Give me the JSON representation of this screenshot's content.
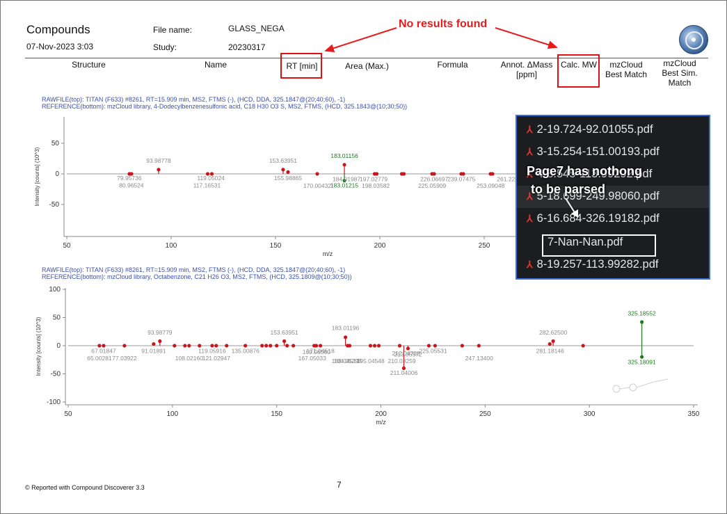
{
  "header": {
    "title": "Compounds",
    "date": "07-Nov-2023 3:03",
    "file_name_label": "File name:",
    "file_name_value": "GLASS_NEGA",
    "study_label": "Study:",
    "study_value": "20230317"
  },
  "annotation": {
    "text": "No results found",
    "color": "#e81b1b"
  },
  "columns": {
    "structure": "Structure",
    "name": "Name",
    "rt": "RT [min]",
    "area": "Area (Max.)",
    "formula": "Formula",
    "annot_line1": "Annot. ΔMass",
    "annot_line2": "[ppm]",
    "calc_mw": "Calc. MW",
    "mzcloud_line1": "mzCloud",
    "mzcloud_line2": "Best Match",
    "mzcloud_sim_line1": "mzCloud",
    "mzcloud_sim_line2": "Best Sim.",
    "mzcloud_sim_line3": "Match"
  },
  "spectrum1_header": {
    "line1": "RAWFILE(top): TITAN (F633) #8261, RT=15.909 min, MS2, FTMS (-), (HCD, DDA, 325.1847@(20;40;60), -1)",
    "line2": "REFERENCE(bottom): mzCloud library, 4-Dodecylbenzenesulfonic acid, C18 H30 O3 S, MS2, FTMS, (HCD, 325.1843@(10;30;50))"
  },
  "spectrum2_header": {
    "line1": "RAWFILE(top): TITAN (F633) #8261, RT=15.909 min, MS2, FTMS (-), (HCD, DDA, 325.1847@(20;40;60), -1)",
    "line2": "REFERENCE(bottom): mzCloud library, Octabenzone, C21 H26 O3, MS2, FTMS, (HCD, 325.1809@(10;30;50))"
  },
  "overlay": {
    "files": [
      "2-19.724-92.01055.pdf",
      "3-15.254-151.00193.pdf",
      "4-8.545-113.99292.pdf",
      "5-18.699-249.98060.pdf",
      "6-16.684-326.19182.pdf",
      "7-Nan-Nan.pdf",
      "8-19.257-113.99282.pdf"
    ],
    "note_line1": "Page7 has nothong",
    "note_line2": "to be parsed",
    "pdf_icon": "pdf-file-icon"
  },
  "footer": {
    "credit": "© Reported with Compound Discoverer 3.3",
    "page_number": "7"
  },
  "colors": {
    "red_peak": "#c8161d",
    "green_peak": "#1f7a1f",
    "header_blue": "#3a4fb0",
    "label_gray": "#8a8a8a"
  },
  "chart_data": [
    {
      "type": "scatter",
      "xlabel": "m/z",
      "ylabel": "Intensity [counts] (10^3)",
      "xlim": [
        50,
        300
      ],
      "ylim": [
        -75,
        75
      ],
      "xticks": [
        "50",
        "100",
        "150",
        "200",
        "250"
      ],
      "yticks": [
        "50",
        "0",
        "-50"
      ],
      "series": [
        {
          "mz": [
            80.0,
            81.0,
            93.98778,
            117.5,
            119.5,
            153.63951,
            156.0,
            170.0,
            183.01156,
            197.5,
            198.5,
            210.5,
            211.5,
            225.0,
            226.0,
            239.0,
            240.0,
            253.0,
            254.0
          ],
          "intensity": [
            0,
            0,
            7,
            0,
            0,
            7,
            3,
            0,
            15,
            0,
            0,
            0,
            0,
            0,
            0,
            0,
            0,
            0,
            0
          ]
        },
        {
          "mz": [
            183.01215
          ],
          "intensity": [
            -11
          ]
        }
      ],
      "labels": [
        {
          "text": "93.98778",
          "mz": 93.98778,
          "y": 18
        },
        {
          "text": "79.95736",
          "mz": 79.95736,
          "y": -10
        },
        {
          "text": "80.96524",
          "mz": 80.96524,
          "y": -22
        },
        {
          "text": "119.05024",
          "mz": 119.05024,
          "y": -10
        },
        {
          "text": "117.16531",
          "mz": 117.16531,
          "y": -22
        },
        {
          "text": "153.63951",
          "mz": 153.63951,
          "y": 18
        },
        {
          "text": "155.98865",
          "mz": 155.98865,
          "y": -10
        },
        {
          "text": "184.01987",
          "mz": 184.01987,
          "y": -12
        },
        {
          "text": "170.00432",
          "mz": 170.00432,
          "y": -23
        },
        {
          "text": "183.01156",
          "mz": 183.01156,
          "y": 26
        },
        {
          "text": "183.01215",
          "mz": 183.01215,
          "y": -22
        },
        {
          "text": "197.02779",
          "mz": 197.02779,
          "y": -12
        },
        {
          "text": "198.03582",
          "mz": 198.03582,
          "y": -23
        },
        {
          "text": "226.06697",
          "mz": 226.06697,
          "y": -12
        },
        {
          "text": "225.05909",
          "mz": 225.05909,
          "y": -23
        },
        {
          "text": "239.07475",
          "mz": 239.07475,
          "y": -12
        },
        {
          "text": "253.09048",
          "mz": 253.09048,
          "y": -23
        },
        {
          "text": "261.222",
          "mz": 261.222,
          "y": -12
        }
      ]
    },
    {
      "type": "scatter",
      "xlabel": "m/z",
      "ylabel": "Intensity [counts] (10^3)",
      "xlim": [
        50,
        350
      ],
      "ylim": [
        -100,
        100
      ],
      "xticks": [
        "50",
        "100",
        "150",
        "200",
        "250",
        "300",
        "350"
      ],
      "yticks": [
        "100",
        "50",
        "0",
        "-50",
        "-100"
      ],
      "series": [
        {
          "mz": [
            65.0,
            67.0,
            77.0,
            91.0,
            93.98779,
            101.0,
            106.0,
            108.0,
            113.0,
            119.05916,
            121.0,
            126.0,
            135.0,
            143.0,
            145.0,
            147.0,
            150.0,
            153.63951,
            155.0,
            158.0,
            168.0,
            169.0,
            171.0,
            183.01196,
            184.0,
            185.0,
            195.0,
            197.0,
            199.0,
            209.0,
            211.0,
            213.0,
            223.0,
            226.0,
            239.0,
            247.0,
            281.0,
            282.625,
            297.0
          ],
          "intensity": [
            0,
            0,
            0,
            3,
            8,
            0,
            0,
            0,
            0,
            0,
            0,
            0,
            0,
            0,
            0,
            0,
            0,
            8,
            0,
            0,
            0,
            0,
            0,
            15,
            0,
            0,
            0,
            0,
            0,
            0,
            -40,
            -5,
            0,
            0,
            0,
            0,
            3,
            8,
            0
          ]
        },
        {
          "mz": [
            325.18552,
            325.18091
          ],
          "intensity": [
            42,
            -20
          ]
        }
      ],
      "labels": [
        {
          "text": "93.98779",
          "mz": 93.98779,
          "y": 20
        },
        {
          "text": "91.01891",
          "mz": 91.01891,
          "y": -13
        },
        {
          "text": "67.01847",
          "mz": 67.01847,
          "y": -13
        },
        {
          "text": "65.00281",
          "mz": 65.00281,
          "y": -26
        },
        {
          "text": "77.03922",
          "mz": 77.03922,
          "y": -26
        },
        {
          "text": "119.05916",
          "mz": 119.05916,
          "y": -13
        },
        {
          "text": "108.02160",
          "mz": 108.0216,
          "y": -26
        },
        {
          "text": "121.02947",
          "mz": 121.02947,
          "y": -26
        },
        {
          "text": "153.63951",
          "mz": 153.63951,
          "y": 20
        },
        {
          "text": "135.00876",
          "mz": 135.00876,
          "y": -13
        },
        {
          "text": "171.04518",
          "mz": 171.04518,
          "y": -13
        },
        {
          "text": "167.05033",
          "mz": 167.05033,
          "y": -26
        },
        {
          "text": "169.06560",
          "mz": 169.0656,
          "y": -15
        },
        {
          "text": "183.04517",
          "mz": 183.04517,
          "y": -31
        },
        {
          "text": "183.01196",
          "mz": 183.01196,
          "y": 28
        },
        {
          "text": "184.05298",
          "mz": 184.05298,
          "y": -31
        },
        {
          "text": "212.04788",
          "mz": 212.04788,
          "y": -17
        },
        {
          "text": "195.04548",
          "mz": 195.04548,
          "y": -31
        },
        {
          "text": "213.05572",
          "mz": 213.05572,
          "y": -19
        },
        {
          "text": "210.03259",
          "mz": 210.03259,
          "y": -31
        },
        {
          "text": "211.04006",
          "mz": 211.04006,
          "y": -52
        },
        {
          "text": "225.05531",
          "mz": 225.05531,
          "y": -13
        },
        {
          "text": "247.13400",
          "mz": 247.134,
          "y": -26
        },
        {
          "text": "282.62500",
          "mz": 282.625,
          "y": 20
        },
        {
          "text": "281.18146",
          "mz": 281.18146,
          "y": -13
        },
        {
          "text": "325.18552",
          "mz": 325.18552,
          "y": 54
        },
        {
          "text": "325.18091",
          "mz": 325.18091,
          "y": -33
        }
      ]
    }
  ]
}
